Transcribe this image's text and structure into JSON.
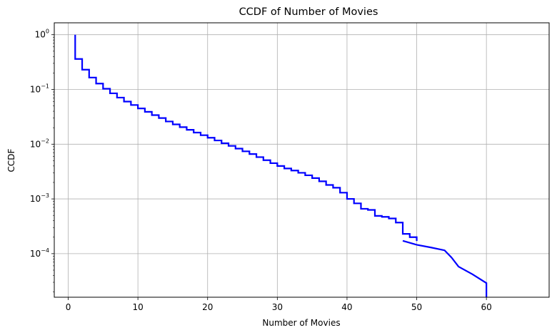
{
  "chart_data": {
    "type": "line",
    "title": "CCDF of Number of Movies",
    "xlabel": "Number of Movies",
    "ylabel": "CCDF",
    "xlim": [
      -2,
      69
    ],
    "ylim": [
      1.6e-05,
      1.65
    ],
    "yscale": "log",
    "grid": true,
    "line_color": "#0000ff",
    "grid_color": "#b0b0b0",
    "x_ticks": [
      0,
      10,
      20,
      30,
      40,
      50,
      60
    ],
    "y_ticks": [
      {
        "value": 1,
        "base": "10",
        "exp": "0"
      },
      {
        "value": 0.1,
        "base": "10",
        "exp": "−1"
      },
      {
        "value": 0.01,
        "base": "10",
        "exp": "−2"
      },
      {
        "value": 0.001,
        "base": "10",
        "exp": "−3"
      },
      {
        "value": 0.0001,
        "base": "10",
        "exp": "−4"
      }
    ],
    "series": [
      {
        "step": "post",
        "points": [
          [
            1,
            1.0
          ],
          [
            1,
            0.36
          ],
          [
            2,
            0.23
          ],
          [
            3,
            0.165
          ],
          [
            4,
            0.128
          ],
          [
            5,
            0.103
          ],
          [
            6,
            0.085
          ],
          [
            7,
            0.071
          ],
          [
            8,
            0.06
          ],
          [
            9,
            0.052
          ],
          [
            10,
            0.045
          ],
          [
            11,
            0.039
          ],
          [
            12,
            0.034
          ],
          [
            13,
            0.03
          ],
          [
            14,
            0.026
          ],
          [
            15,
            0.023
          ],
          [
            16,
            0.0205
          ],
          [
            17,
            0.0183
          ],
          [
            18,
            0.0163
          ],
          [
            19,
            0.0146
          ],
          [
            20,
            0.0131
          ],
          [
            21,
            0.0117
          ],
          [
            22,
            0.0104
          ],
          [
            23,
            0.0093
          ],
          [
            24,
            0.0083
          ],
          [
            25,
            0.0074
          ],
          [
            26,
            0.0066
          ],
          [
            27,
            0.0058
          ],
          [
            28,
            0.0051
          ],
          [
            29,
            0.0045
          ],
          [
            30,
            0.004
          ],
          [
            31,
            0.0036
          ],
          [
            32,
            0.0033
          ],
          [
            33,
            0.003
          ],
          [
            34,
            0.0027
          ],
          [
            35,
            0.0024
          ],
          [
            36,
            0.0021
          ],
          [
            37,
            0.0018
          ],
          [
            38,
            0.0016
          ],
          [
            39,
            0.0013
          ],
          [
            40,
            0.001
          ],
          [
            41,
            0.00083
          ],
          [
            42,
            0.00066
          ],
          [
            43,
            0.00063
          ],
          [
            44,
            0.00049
          ],
          [
            45,
            0.00047
          ],
          [
            46,
            0.00044
          ],
          [
            47,
            0.00037
          ],
          [
            48,
            0.00023
          ],
          [
            49,
            0.0002
          ],
          [
            50,
            0.00017
          ]
        ]
      },
      {
        "step": "none",
        "points": [
          [
            48,
            0.000172
          ],
          [
            50,
            0.000145
          ],
          [
            52,
            0.00013
          ],
          [
            54,
            0.000115
          ],
          [
            55,
            8.5e-05
          ],
          [
            56,
            5.8e-05
          ],
          [
            58,
            4.2e-05
          ],
          [
            60,
            2.9e-05
          ],
          [
            60,
            1.6e-05
          ]
        ]
      }
    ]
  }
}
